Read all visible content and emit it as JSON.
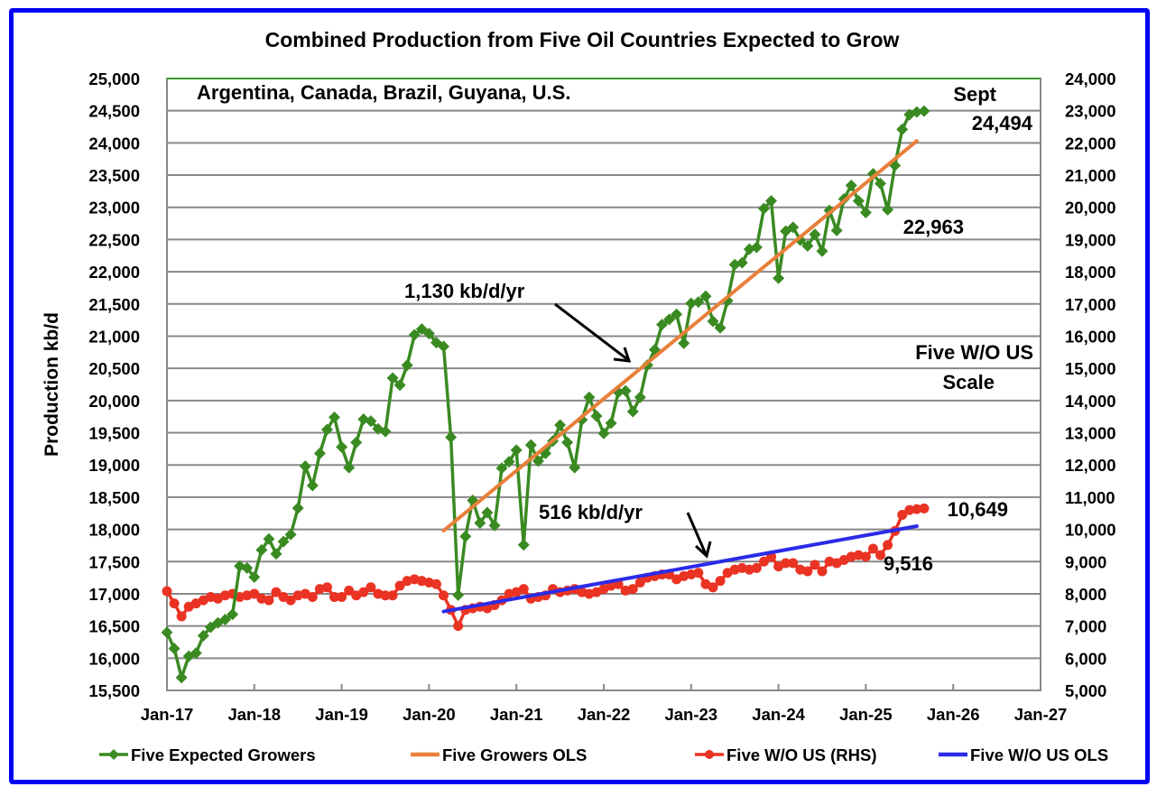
{
  "chart_data": {
    "type": "line",
    "title": "Combined Production from Five Oil Countries Expected to Grow",
    "subtitle": "Argentina, Canada, Brazil, Guyana, U.S.",
    "ylabel": "Production kb/d",
    "ylim": [
      15500,
      25000
    ],
    "y_ticks": [
      "25,000",
      "24,500",
      "24,000",
      "23,500",
      "23,000",
      "22,500",
      "22,000",
      "21,500",
      "21,000",
      "20,500",
      "20,000",
      "19,500",
      "19,000",
      "18,500",
      "18,000",
      "17,500",
      "17,000",
      "16,500",
      "16,000",
      "15,500"
    ],
    "y2lim": [
      5000,
      24000
    ],
    "y2_ticks": [
      "24,000",
      "23,000",
      "22,000",
      "21,000",
      "20,000",
      "19,000",
      "18,000",
      "17,000",
      "16,000",
      "15,000",
      "14,000",
      "13,000",
      "12,000",
      "11,000",
      "10,000",
      "9,000",
      "8,000",
      "7,000",
      "6,000",
      "5,000"
    ],
    "x_ticks": [
      "Jan-17",
      "Jan-18",
      "Jan-19",
      "Jan-20",
      "Jan-21",
      "Jan-22",
      "Jan-23",
      "Jan-24",
      "Jan-25",
      "Jan-26",
      "Jan-27"
    ],
    "x_start": "Jan-17",
    "x_range_months": [
      0,
      120
    ],
    "grid": "horizontal",
    "legend_position": "bottom",
    "series": [
      {
        "name": "Five Expected Growers",
        "axis": "left",
        "color": "#3a8a22",
        "marker": "diamond",
        "start_month": 0,
        "values": [
          16400,
          16150,
          15700,
          16030,
          16080,
          16350,
          16480,
          16550,
          16600,
          16680,
          17430,
          17400,
          17260,
          17680,
          17850,
          17620,
          17810,
          17920,
          18330,
          18980,
          18680,
          19180,
          19550,
          19740,
          19280,
          18960,
          19350,
          19710,
          19680,
          19560,
          19520,
          20350,
          20240,
          20550,
          21020,
          21110,
          21040,
          20900,
          20840,
          19430,
          16980,
          17890,
          18450,
          18100,
          18260,
          18060,
          18950,
          19050,
          19230,
          17760,
          19310,
          19060,
          19180,
          19370,
          19620,
          19350,
          18960,
          19700,
          20050,
          19760,
          19490,
          19650,
          20130,
          20150,
          19830,
          20050,
          20550,
          20790,
          21180,
          21260,
          21340,
          20890,
          21510,
          21530,
          21620,
          21230,
          21130,
          21550,
          22110,
          22140,
          22350,
          22380,
          22980,
          23100,
          21900,
          22630,
          22690,
          22490,
          22400,
          22580,
          22320,
          22950,
          22640,
          23130,
          23340,
          23100,
          22920,
          23520,
          23370,
          22963,
          23650,
          24210,
          24440,
          24480,
          24494
        ]
      },
      {
        "name": "Five Growers OLS",
        "axis": "left",
        "color": "#e8803a",
        "marker": "none",
        "start_month": 38,
        "end_month": 103,
        "start_value": 17980,
        "end_value": 24030
      },
      {
        "name": "Five W/O US (RHS)",
        "axis": "right",
        "color": "#ea3323",
        "marker": "circle",
        "start_month": 0,
        "values": [
          8080,
          7700,
          7300,
          7600,
          7700,
          7800,
          7900,
          7850,
          7950,
          8000,
          7900,
          7950,
          8000,
          7850,
          7800,
          8050,
          7900,
          7800,
          7950,
          8000,
          7900,
          8150,
          8200,
          7900,
          7900,
          8100,
          7950,
          8050,
          8200,
          8000,
          7950,
          7950,
          8250,
          8400,
          8450,
          8400,
          8350,
          8300,
          7950,
          7500,
          7000,
          7500,
          7550,
          7600,
          7550,
          7650,
          7800,
          8000,
          8050,
          8150,
          7850,
          7900,
          7950,
          8150,
          8050,
          8100,
          8150,
          8050,
          8000,
          8050,
          8150,
          8250,
          8300,
          8100,
          8150,
          8350,
          8500,
          8550,
          8600,
          8600,
          8450,
          8550,
          8600,
          8650,
          8300,
          8200,
          8400,
          8650,
          8750,
          8800,
          8750,
          8800,
          9000,
          9150,
          8850,
          8950,
          8950,
          8750,
          8700,
          8900,
          8700,
          9000,
          8950,
          9050,
          9150,
          9200,
          9150,
          9400,
          9200,
          9516,
          9950,
          10450,
          10600,
          10630,
          10649
        ]
      },
      {
        "name": "Five W/O US OLS",
        "axis": "right",
        "color": "#2b2be8",
        "marker": "none",
        "start_month": 38,
        "end_month": 103,
        "start_value": 7450,
        "end_value": 10100
      }
    ],
    "annotations": [
      {
        "text": "Sept",
        "target": "last green point"
      },
      {
        "text": "24,494",
        "value": 24494,
        "series": "Five Expected Growers",
        "month": 104
      },
      {
        "text": "22,963",
        "value": 22963,
        "series": "Five Expected Growers",
        "month": 99
      },
      {
        "text": "1,130 kb/d/yr",
        "arrow_to": "Five Growers OLS"
      },
      {
        "text": "516 kb/d/yr",
        "arrow_to": "Five W/O US OLS"
      },
      {
        "text": "10,649",
        "value": 10649,
        "series": "Five W/O US (RHS)",
        "month": 104
      },
      {
        "text": "9,516",
        "value": 9516,
        "series": "Five W/O US (RHS)",
        "month": 99
      },
      {
        "text": "Five W/O US",
        "note": "right axis label line 1"
      },
      {
        "text": "Scale",
        "note": "right axis label line 2"
      }
    ]
  },
  "labels": {
    "sept": "Sept",
    "last_green": "24,494",
    "dip_green": "22,963",
    "ols_green_rate": "1,130 kb/d/yr",
    "ols_red_rate": "516 kb/d/yr",
    "last_red": "10,649",
    "dip_red": "9,516",
    "rhs_note_1": "Five W/O US",
    "rhs_note_2": "Scale"
  }
}
